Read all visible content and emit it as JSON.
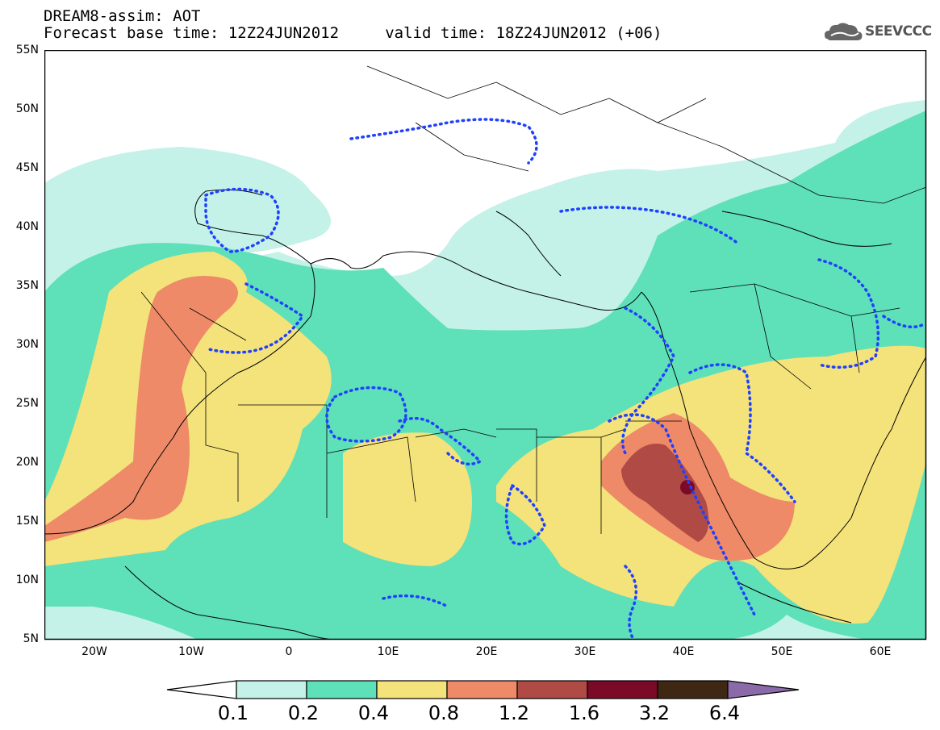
{
  "title_line1": "DREAM8-assim: AOT",
  "title_line2": "Forecast base time: 12Z24JUN2012     valid time: 18Z24JUN2012 (+06)",
  "logo_text": "SEEVCCC",
  "lat_labels": [
    "55N",
    "50N",
    "45N",
    "40N",
    "35N",
    "30N",
    "25N",
    "20N",
    "15N",
    "10N",
    "5N"
  ],
  "lon_labels": [
    "20W",
    "10W",
    "0",
    "10E",
    "20E",
    "30E",
    "40E",
    "50E",
    "60E"
  ],
  "colorbar": {
    "levels": [
      "0.1",
      "0.2",
      "0.4",
      "0.8",
      "1.2",
      "1.6",
      "3.2",
      "6.4"
    ],
    "colors": [
      "#ffffff",
      "#c4f2e8",
      "#5ee0b8",
      "#f4e27a",
      "#ee8a68",
      "#b04a44",
      "#7a0a28",
      "#3e2814",
      "#8a6aa8"
    ]
  }
}
